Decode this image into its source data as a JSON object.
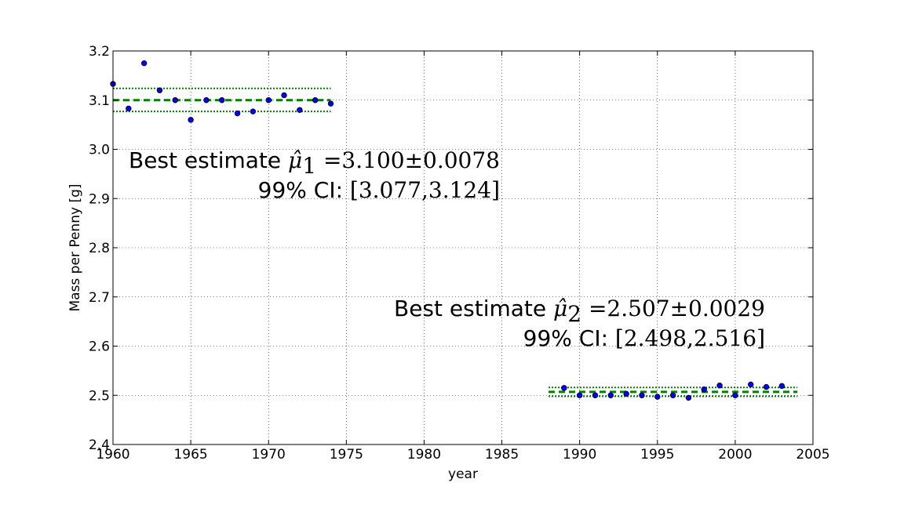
{
  "chart_data": {
    "type": "scatter",
    "xlabel": "year",
    "ylabel": "Mass per Penny [g]",
    "xlim": [
      1960,
      2005
    ],
    "ylim": [
      2.4,
      3.2
    ],
    "xticks": [
      "1960",
      "1965",
      "1970",
      "1975",
      "1980",
      "1985",
      "1990",
      "1995",
      "2000",
      "2005"
    ],
    "yticks": [
      "2.4",
      "2.5",
      "2.6",
      "2.7",
      "2.8",
      "2.9",
      "3.0",
      "3.1",
      "3.2"
    ],
    "grid": true,
    "series": [
      {
        "marker_color": "#0000ff",
        "points": [
          {
            "x": 1960,
            "y": 3.133
          },
          {
            "x": 1961,
            "y": 3.083
          },
          {
            "x": 1962,
            "y": 3.175
          },
          {
            "x": 1963,
            "y": 3.12
          },
          {
            "x": 1964,
            "y": 3.1
          },
          {
            "x": 1965,
            "y": 3.06
          },
          {
            "x": 1966,
            "y": 3.1
          },
          {
            "x": 1967,
            "y": 3.1
          },
          {
            "x": 1968,
            "y": 3.073
          },
          {
            "x": 1969,
            "y": 3.077
          },
          {
            "x": 1970,
            "y": 3.1
          },
          {
            "x": 1971,
            "y": 3.11
          },
          {
            "x": 1972,
            "y": 3.08
          },
          {
            "x": 1973,
            "y": 3.1
          },
          {
            "x": 1974,
            "y": 3.093
          },
          {
            "x": 1989,
            "y": 2.515
          },
          {
            "x": 1990,
            "y": 2.5
          },
          {
            "x": 1991,
            "y": 2.5
          },
          {
            "x": 1992,
            "y": 2.5
          },
          {
            "x": 1993,
            "y": 2.503
          },
          {
            "x": 1994,
            "y": 2.5
          },
          {
            "x": 1995,
            "y": 2.497
          },
          {
            "x": 1996,
            "y": 2.5
          },
          {
            "x": 1997,
            "y": 2.495
          },
          {
            "x": 1998,
            "y": 2.512
          },
          {
            "x": 1999,
            "y": 2.52
          },
          {
            "x": 2000,
            "y": 2.5
          },
          {
            "x": 2001,
            "y": 2.522
          },
          {
            "x": 2002,
            "y": 2.517
          },
          {
            "x": 2003,
            "y": 2.519
          }
        ]
      }
    ],
    "estimate_lines": [
      {
        "x_start": 1960,
        "x_end": 1974,
        "mean": 3.1,
        "ci_low": 3.077,
        "ci_high": 3.124,
        "color": "#008000"
      },
      {
        "x_start": 1988,
        "x_end": 2004,
        "mean": 2.507,
        "ci_low": 2.498,
        "ci_high": 2.516,
        "color": "#008000"
      }
    ],
    "annotations": {
      "first": {
        "best_prefix": "Best estimate ",
        "mu": "μ̂",
        "subscript": "1",
        "equals": " =3.100±0.0078",
        "ci_prefix": "99% CI: ",
        "ci_value": "[3.077,3.124]"
      },
      "second": {
        "best_prefix": "Best estimate ",
        "mu": "μ̂",
        "subscript": "2",
        "equals": " =2.507±0.0029",
        "ci_prefix": "99% CI: ",
        "ci_value": "[2.498,2.516]"
      }
    }
  }
}
